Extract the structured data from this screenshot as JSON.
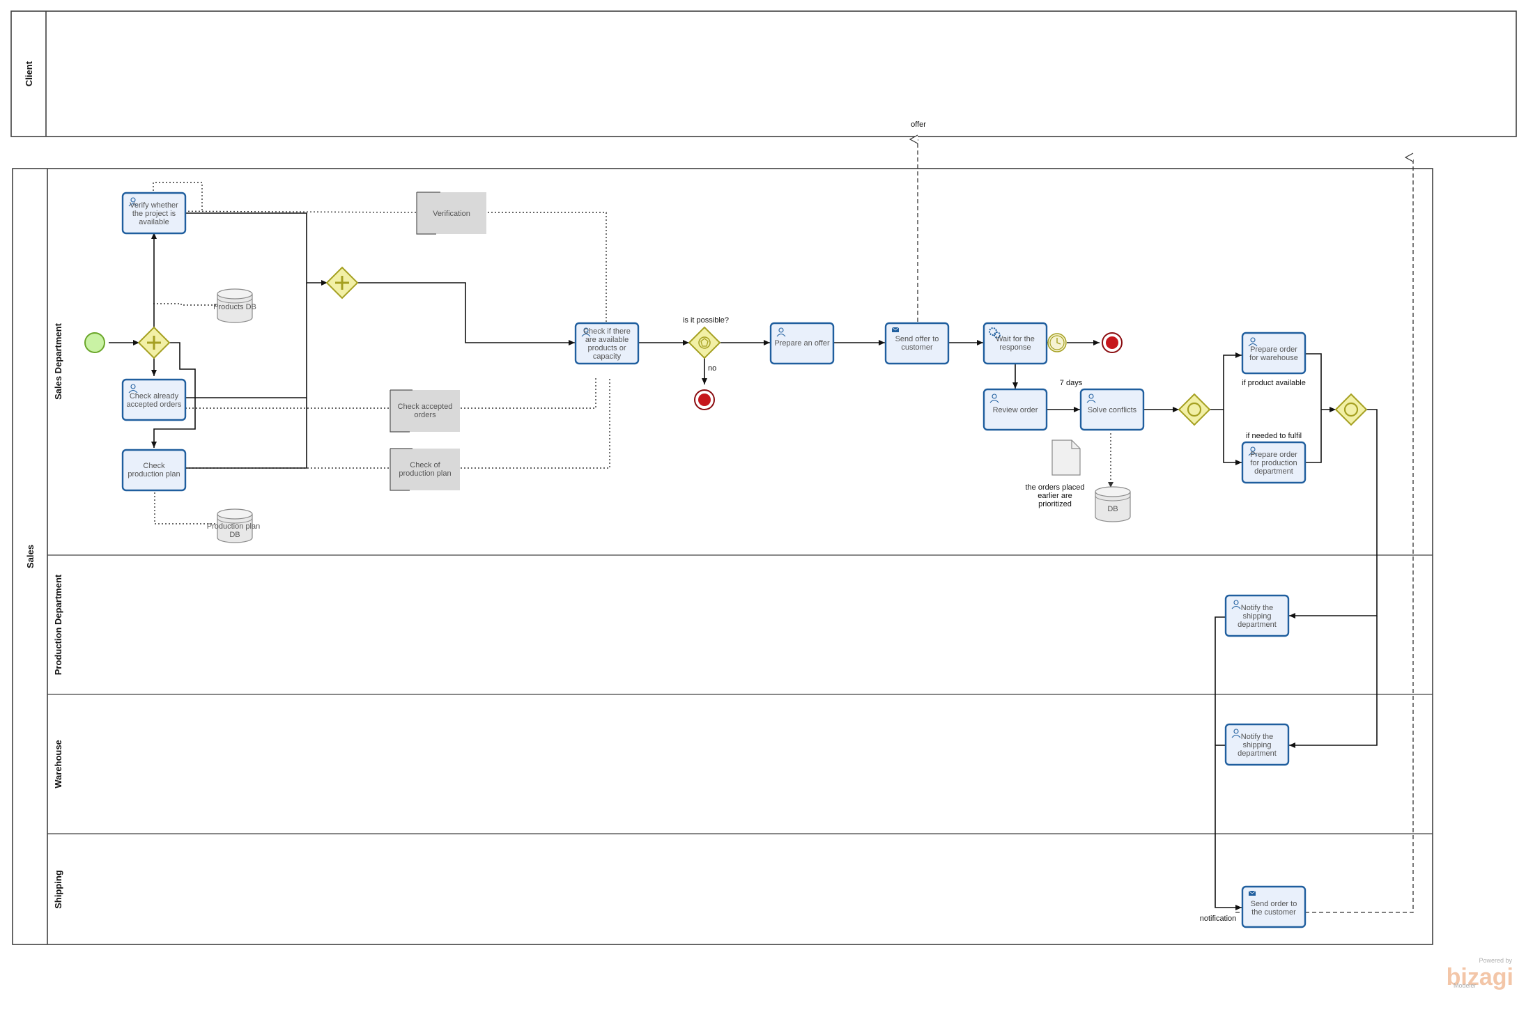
{
  "pools": {
    "client": "Client",
    "sales": "Sales"
  },
  "lanes": {
    "sales_department": "Sales Department",
    "production_department": "Production Department",
    "warehouse": "Warehouse",
    "shipping": "Shipping"
  },
  "tasks": {
    "verify": [
      "Verify whether",
      "the project is",
      "available"
    ],
    "check_orders": [
      "Check already",
      "accepted orders"
    ],
    "check_plan": [
      "Check",
      "production plan"
    ],
    "check_available": [
      "Check if there",
      "are available",
      "products or",
      "capacity"
    ],
    "prepare_offer": [
      "Prepare an offer"
    ],
    "send_offer": [
      "Send offer to",
      "customer"
    ],
    "wait_response": [
      "Wait for the",
      "response"
    ],
    "review_order": [
      "Review order"
    ],
    "solve_conflicts": [
      "Solve conflicts"
    ],
    "prep_warehouse": [
      "Prepare order",
      "for warehouse"
    ],
    "prep_production": [
      "Prepare order",
      "for production",
      "department"
    ],
    "notify_prod": [
      "Notify the",
      "shipping",
      "department"
    ],
    "notify_wh": [
      "Notify the",
      "shipping",
      "department"
    ],
    "send_order": [
      "Send order to",
      "the customer"
    ]
  },
  "gray_boxes": {
    "verification": [
      "Verification"
    ],
    "check_accepted": [
      "Check accepted",
      "orders"
    ],
    "check_of_plan": [
      "Check of",
      "production plan"
    ]
  },
  "data_stores": {
    "products_db": [
      "Products DB"
    ],
    "production_plan_db": [
      "Production plan",
      "DB"
    ],
    "db": [
      "DB"
    ]
  },
  "annotation": [
    "the orders placed",
    "earlier are",
    "prioritized"
  ],
  "labels": {
    "offer": "offer",
    "is_possible": "is it possible?",
    "no": "no",
    "seven_days": "7 days",
    "if_available": "if product available",
    "if_needed": "if needed to fulfil",
    "notification": "notification"
  },
  "brand": {
    "powered_by": "Powered by",
    "name": "bizagi",
    "product": "Modeler"
  },
  "colors": {
    "task_fill": "#e9f0fb",
    "task_stroke": "#1f5e9e",
    "gateway_fill": "#f2f0a6",
    "gateway_stroke": "#a5a021",
    "start_fill": "#c9f2a4",
    "start_stroke": "#6aa62a",
    "end_fill": "#c6161c",
    "end_stroke": "#8a0c10"
  }
}
